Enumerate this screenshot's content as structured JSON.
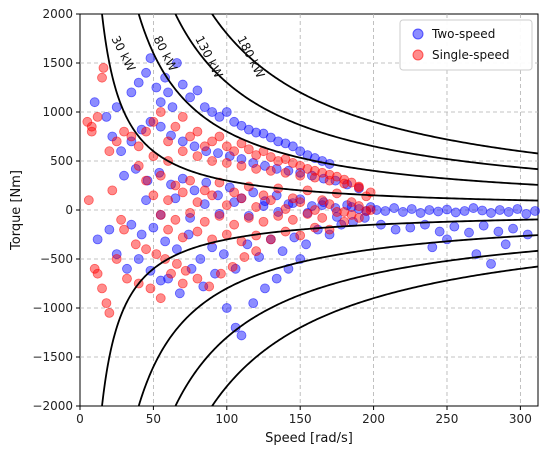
{
  "chart_data": {
    "type": "scatter",
    "xlabel": "Speed [rad/s]",
    "ylabel": "Torque [Nm]",
    "xlim": [
      0,
      312
    ],
    "ylim": [
      -2000,
      2000
    ],
    "xticks": [
      0,
      50,
      100,
      150,
      200,
      250,
      300
    ],
    "yticks": [
      -2000,
      -1500,
      -1000,
      -500,
      0,
      500,
      1000,
      1500,
      2000
    ],
    "grid": true,
    "legend_position": "top-right",
    "power_curves": [
      {
        "label": "30 kW",
        "power_kw": 30
      },
      {
        "label": "80 kW",
        "power_kw": 80
      },
      {
        "label": "130 kW",
        "power_kw": 130
      },
      {
        "label": "180 kW",
        "power_kw": 180
      }
    ],
    "series": [
      {
        "name": "Two-speed",
        "color": "#0000ff",
        "points": [
          [
            10,
            1100
          ],
          [
            18,
            950
          ],
          [
            25,
            1050
          ],
          [
            35,
            1200
          ],
          [
            40,
            1300
          ],
          [
            45,
            1400
          ],
          [
            48,
            1550
          ],
          [
            52,
            1250
          ],
          [
            55,
            1100
          ],
          [
            58,
            1350
          ],
          [
            60,
            1200
          ],
          [
            63,
            1050
          ],
          [
            66,
            1500
          ],
          [
            70,
            1280
          ],
          [
            75,
            1150
          ],
          [
            80,
            1220
          ],
          [
            85,
            1050
          ],
          [
            90,
            1000
          ],
          [
            95,
            950
          ],
          [
            100,
            1000
          ],
          [
            105,
            900
          ],
          [
            110,
            860
          ],
          [
            115,
            820
          ],
          [
            120,
            790
          ],
          [
            125,
            780
          ],
          [
            130,
            740
          ],
          [
            135,
            700
          ],
          [
            140,
            680
          ],
          [
            145,
            650
          ],
          [
            150,
            600
          ],
          [
            155,
            560
          ],
          [
            160,
            530
          ],
          [
            165,
            500
          ],
          [
            170,
            470
          ],
          [
            22,
            750
          ],
          [
            28,
            600
          ],
          [
            35,
            700
          ],
          [
            42,
            820
          ],
          [
            48,
            900
          ],
          [
            55,
            850
          ],
          [
            62,
            760
          ],
          [
            70,
            700
          ],
          [
            78,
            650
          ],
          [
            86,
            600
          ],
          [
            94,
            580
          ],
          [
            102,
            550
          ],
          [
            110,
            520
          ],
          [
            118,
            480
          ],
          [
            126,
            450
          ],
          [
            134,
            420
          ],
          [
            142,
            400
          ],
          [
            150,
            380
          ],
          [
            158,
            350
          ],
          [
            166,
            320
          ],
          [
            174,
            300
          ],
          [
            182,
            260
          ],
          [
            190,
            220
          ],
          [
            30,
            350
          ],
          [
            38,
            420
          ],
          [
            46,
            300
          ],
          [
            54,
            380
          ],
          [
            62,
            260
          ],
          [
            70,
            320
          ],
          [
            78,
            200
          ],
          [
            86,
            280
          ],
          [
            94,
            150
          ],
          [
            102,
            230
          ],
          [
            110,
            120
          ],
          [
            118,
            180
          ],
          [
            126,
            90
          ],
          [
            134,
            150
          ],
          [
            142,
            60
          ],
          [
            150,
            110
          ],
          [
            158,
            40
          ],
          [
            166,
            80
          ],
          [
            174,
            20
          ],
          [
            182,
            50
          ],
          [
            190,
            10
          ],
          [
            198,
            30
          ],
          [
            202,
            0
          ],
          [
            208,
            -10
          ],
          [
            214,
            20
          ],
          [
            220,
            -20
          ],
          [
            226,
            10
          ],
          [
            232,
            -30
          ],
          [
            238,
            0
          ],
          [
            244,
            -15
          ],
          [
            250,
            5
          ],
          [
            256,
            -25
          ],
          [
            262,
            -10
          ],
          [
            268,
            20
          ],
          [
            274,
            -5
          ],
          [
            280,
            -30
          ],
          [
            286,
            0
          ],
          [
            292,
            -20
          ],
          [
            298,
            10
          ],
          [
            304,
            -40
          ],
          [
            310,
            -10
          ],
          [
            205,
            -150
          ],
          [
            215,
            -200
          ],
          [
            225,
            -180
          ],
          [
            235,
            -150
          ],
          [
            245,
            -220
          ],
          [
            255,
            -170
          ],
          [
            265,
            -230
          ],
          [
            275,
            -160
          ],
          [
            285,
            -220
          ],
          [
            295,
            -190
          ],
          [
            305,
            -250
          ],
          [
            290,
            -350
          ],
          [
            270,
            -450
          ],
          [
            280,
            -550
          ],
          [
            250,
            -300
          ],
          [
            240,
            -380
          ],
          [
            35,
            -150
          ],
          [
            42,
            -250
          ],
          [
            50,
            -180
          ],
          [
            58,
            -320
          ],
          [
            66,
            -400
          ],
          [
            74,
            -250
          ],
          [
            82,
            -500
          ],
          [
            90,
            -380
          ],
          [
            98,
            -450
          ],
          [
            106,
            -600
          ],
          [
            114,
            -350
          ],
          [
            122,
            -480
          ],
          [
            130,
            -300
          ],
          [
            138,
            -420
          ],
          [
            146,
            -280
          ],
          [
            154,
            -350
          ],
          [
            162,
            -200
          ],
          [
            170,
            -250
          ],
          [
            178,
            -150
          ],
          [
            186,
            -120
          ],
          [
            194,
            -80
          ],
          [
            60,
            -700
          ],
          [
            68,
            -850
          ],
          [
            76,
            -600
          ],
          [
            84,
            -780
          ],
          [
            92,
            -650
          ],
          [
            100,
            -1000
          ],
          [
            106,
            -1200
          ],
          [
            110,
            -1280
          ],
          [
            118,
            -950
          ],
          [
            126,
            -800
          ],
          [
            134,
            -700
          ],
          [
            142,
            -600
          ],
          [
            150,
            -500
          ],
          [
            25,
            -450
          ],
          [
            32,
            -600
          ],
          [
            40,
            -500
          ],
          [
            48,
            -620
          ],
          [
            55,
            -720
          ],
          [
            12,
            -300
          ],
          [
            20,
            -200
          ],
          [
            45,
            100
          ],
          [
            55,
            -50
          ],
          [
            65,
            120
          ],
          [
            75,
            -80
          ],
          [
            85,
            60
          ],
          [
            95,
            -40
          ],
          [
            105,
            80
          ],
          [
            115,
            -60
          ],
          [
            125,
            40
          ],
          [
            135,
            -20
          ],
          [
            145,
            70
          ],
          [
            155,
            -30
          ],
          [
            165,
            50
          ],
          [
            175,
            -70
          ],
          [
            185,
            30
          ],
          [
            195,
            -10
          ]
        ]
      },
      {
        "name": "Single-speed",
        "color": "#ff0000",
        "points": [
          [
            8,
            850
          ],
          [
            12,
            950
          ],
          [
            15,
            1350
          ],
          [
            16,
            1450
          ],
          [
            20,
            600
          ],
          [
            25,
            700
          ],
          [
            30,
            800
          ],
          [
            35,
            750
          ],
          [
            40,
            650
          ],
          [
            45,
            800
          ],
          [
            50,
            900
          ],
          [
            55,
            1000
          ],
          [
            60,
            700
          ],
          [
            65,
            850
          ],
          [
            70,
            950
          ],
          [
            75,
            750
          ],
          [
            80,
            800
          ],
          [
            85,
            650
          ],
          [
            90,
            700
          ],
          [
            95,
            750
          ],
          [
            100,
            650
          ],
          [
            105,
            600
          ],
          [
            110,
            680
          ],
          [
            115,
            620
          ],
          [
            120,
            560
          ],
          [
            125,
            600
          ],
          [
            130,
            540
          ],
          [
            135,
            500
          ],
          [
            140,
            520
          ],
          [
            145,
            480
          ],
          [
            150,
            450
          ],
          [
            155,
            420
          ],
          [
            160,
            400
          ],
          [
            165,
            380
          ],
          [
            170,
            360
          ],
          [
            175,
            340
          ],
          [
            180,
            310
          ],
          [
            185,
            280
          ],
          [
            190,
            240
          ],
          [
            40,
            450
          ],
          [
            50,
            550
          ],
          [
            60,
            500
          ],
          [
            70,
            600
          ],
          [
            80,
            550
          ],
          [
            90,
            500
          ],
          [
            100,
            480
          ],
          [
            110,
            450
          ],
          [
            120,
            420
          ],
          [
            130,
            400
          ],
          [
            140,
            380
          ],
          [
            150,
            350
          ],
          [
            160,
            330
          ],
          [
            170,
            300
          ],
          [
            180,
            270
          ],
          [
            190,
            230
          ],
          [
            198,
            180
          ],
          [
            45,
            300
          ],
          [
            55,
            350
          ],
          [
            65,
            250
          ],
          [
            75,
            300
          ],
          [
            85,
            200
          ],
          [
            95,
            280
          ],
          [
            105,
            180
          ],
          [
            115,
            240
          ],
          [
            125,
            150
          ],
          [
            135,
            220
          ],
          [
            145,
            120
          ],
          [
            155,
            200
          ],
          [
            165,
            100
          ],
          [
            175,
            170
          ],
          [
            185,
            80
          ],
          [
            195,
            140
          ],
          [
            50,
            150
          ],
          [
            60,
            100
          ],
          [
            70,
            180
          ],
          [
            80,
            80
          ],
          [
            90,
            150
          ],
          [
            100,
            50
          ],
          [
            110,
            120
          ],
          [
            120,
            30
          ],
          [
            130,
            100
          ],
          [
            140,
            10
          ],
          [
            150,
            80
          ],
          [
            160,
            0
          ],
          [
            170,
            60
          ],
          [
            180,
            -20
          ],
          [
            190,
            40
          ],
          [
            198,
            0
          ],
          [
            55,
            -50
          ],
          [
            65,
            -100
          ],
          [
            75,
            -30
          ],
          [
            85,
            -120
          ],
          [
            95,
            -60
          ],
          [
            105,
            -150
          ],
          [
            115,
            -80
          ],
          [
            125,
            -120
          ],
          [
            135,
            -60
          ],
          [
            145,
            -100
          ],
          [
            155,
            -40
          ],
          [
            165,
            -80
          ],
          [
            175,
            -20
          ],
          [
            185,
            -50
          ],
          [
            195,
            -10
          ],
          [
            60,
            -200
          ],
          [
            70,
            -280
          ],
          [
            80,
            -220
          ],
          [
            90,
            -300
          ],
          [
            100,
            -250
          ],
          [
            110,
            -320
          ],
          [
            120,
            -260
          ],
          [
            130,
            -300
          ],
          [
            140,
            -220
          ],
          [
            150,
            -260
          ],
          [
            160,
            -180
          ],
          [
            170,
            -200
          ],
          [
            180,
            -120
          ],
          [
            190,
            -80
          ],
          [
            30,
            -200
          ],
          [
            38,
            -350
          ],
          [
            45,
            -400
          ],
          [
            52,
            -450
          ],
          [
            58,
            -500
          ],
          [
            66,
            -550
          ],
          [
            72,
            -620
          ],
          [
            80,
            -700
          ],
          [
            88,
            -780
          ],
          [
            96,
            -650
          ],
          [
            104,
            -580
          ],
          [
            112,
            -480
          ],
          [
            120,
            -420
          ],
          [
            12,
            -650
          ],
          [
            15,
            -800
          ],
          [
            18,
            -950
          ],
          [
            20,
            -1050
          ],
          [
            25,
            -500
          ],
          [
            32,
            -700
          ],
          [
            40,
            -750
          ],
          [
            48,
            -800
          ],
          [
            55,
            -900
          ],
          [
            62,
            -650
          ],
          [
            70,
            -750
          ],
          [
            5,
            900
          ],
          [
            6,
            100
          ],
          [
            8,
            800
          ],
          [
            10,
            -600
          ],
          [
            22,
            200
          ],
          [
            28,
            -100
          ]
        ]
      }
    ]
  }
}
